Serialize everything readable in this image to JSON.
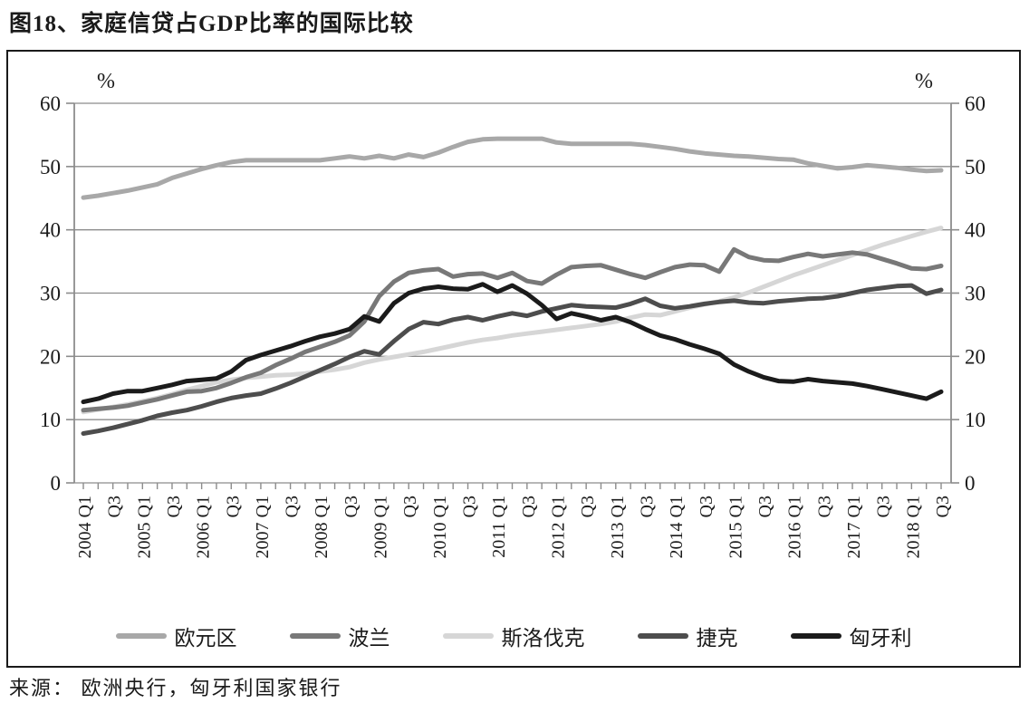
{
  "title": "图18、家庭信贷占GDP比率的国际比较",
  "source": "来源： 欧洲央行，匈牙利国家银行",
  "chart_data": {
    "type": "line",
    "unit_label": "%",
    "ylim": [
      0,
      60
    ],
    "ytick_step": 10,
    "grid": "horizontal",
    "legend_position": "bottom-inside",
    "axis_color": "#8c8c8c",
    "frame_color": "#1a1a1a",
    "x_tick_every_quarter": true,
    "x_labels": [
      "2004 Q1",
      "Q3",
      "2005 Q1",
      "Q3",
      "2006 Q1",
      "Q3",
      "2007 Q1",
      "Q3",
      "2008 Q1",
      "Q3",
      "2009 Q1",
      "Q3",
      "2010 Q1",
      "Q3",
      "2011 Q1",
      "Q3",
      "2012 Q1",
      "Q3",
      "2013 Q1",
      "Q3",
      "2014 Q1",
      "Q3",
      "2015 Q1",
      "Q3",
      "2016 Q1",
      "Q3",
      "2017 Q1",
      "Q3",
      "2018 Q1",
      "Q3"
    ],
    "x_label_quarter_indices": [
      0,
      2,
      4,
      6,
      8,
      10,
      12,
      14,
      16,
      18,
      20,
      22,
      24,
      26,
      28,
      30,
      32,
      34,
      36,
      38,
      40,
      42,
      44,
      46,
      48,
      50,
      52,
      54,
      56,
      58
    ],
    "n_quarters": 59,
    "draw_order": [
      0,
      2,
      1,
      3,
      4
    ],
    "series": [
      {
        "name": "欧元区",
        "color": "#a8a8a8",
        "values": [
          45.1,
          45.4,
          45.8,
          46.2,
          46.7,
          47.2,
          48.2,
          48.9,
          49.6,
          50.2,
          50.7,
          51.0,
          51.0,
          51.0,
          51.0,
          51.0,
          51.0,
          51.3,
          51.6,
          51.3,
          51.7,
          51.3,
          51.9,
          51.5,
          52.2,
          53.1,
          53.9,
          54.3,
          54.4,
          54.4,
          54.4,
          54.4,
          53.8,
          53.6,
          53.6,
          53.6,
          53.6,
          53.6,
          53.4,
          53.1,
          52.8,
          52.4,
          52.1,
          51.9,
          51.7,
          51.6,
          51.4,
          51.2,
          51.1,
          50.5,
          50.1,
          49.7,
          49.9,
          50.2,
          50.0,
          49.8,
          49.5,
          49.3,
          49.4
        ]
      },
      {
        "name": "波兰",
        "color": "#787878",
        "values": [
          11.5,
          11.7,
          11.9,
          12.2,
          12.7,
          13.2,
          13.8,
          14.4,
          14.5,
          15.0,
          15.8,
          16.7,
          17.4,
          18.6,
          19.6,
          20.7,
          21.5,
          22.3,
          23.3,
          25.5,
          29.5,
          31.8,
          33.2,
          33.6,
          33.8,
          32.6,
          33.0,
          33.1,
          32.4,
          33.2,
          31.9,
          31.5,
          32.9,
          34.1,
          34.3,
          34.4,
          33.7,
          33.0,
          32.4,
          33.3,
          34.1,
          34.5,
          34.4,
          33.4,
          36.9,
          35.7,
          35.2,
          35.1,
          35.7,
          36.2,
          35.8,
          36.1,
          36.4,
          36.1,
          35.4,
          34.7,
          33.9,
          33.8,
          34.3
        ]
      },
      {
        "name": "斯洛伐克",
        "color": "#d6d6d6",
        "values": [
          11.2,
          11.6,
          12.0,
          12.4,
          12.9,
          13.4,
          14.0,
          14.7,
          15.3,
          15.9,
          16.3,
          16.6,
          16.8,
          17.0,
          17.1,
          17.3,
          17.6,
          17.9,
          18.3,
          19.0,
          19.5,
          19.9,
          20.3,
          20.7,
          21.2,
          21.7,
          22.2,
          22.6,
          22.9,
          23.3,
          23.6,
          23.9,
          24.2,
          24.5,
          24.8,
          25.1,
          25.5,
          26.1,
          26.6,
          26.5,
          27.1,
          27.7,
          28.2,
          28.7,
          29.3,
          30.1,
          31.0,
          31.9,
          32.8,
          33.6,
          34.4,
          35.2,
          36.0,
          36.8,
          37.6,
          38.3,
          39.0,
          39.7,
          40.3
        ]
      },
      {
        "name": "捷克",
        "color": "#4d4d4d",
        "values": [
          7.8,
          8.2,
          8.7,
          9.3,
          9.9,
          10.6,
          11.1,
          11.5,
          12.1,
          12.8,
          13.4,
          13.8,
          14.1,
          14.9,
          15.8,
          16.8,
          17.8,
          18.8,
          19.9,
          20.8,
          20.3,
          22.4,
          24.3,
          25.4,
          25.1,
          25.8,
          26.2,
          25.7,
          26.3,
          26.8,
          26.4,
          27.1,
          27.6,
          28.1,
          27.9,
          27.8,
          27.7,
          28.3,
          29.1,
          28.0,
          27.6,
          27.9,
          28.3,
          28.6,
          28.8,
          28.5,
          28.4,
          28.7,
          28.9,
          29.1,
          29.2,
          29.5,
          30.0,
          30.5,
          30.8,
          31.1,
          31.2,
          29.9,
          30.5
        ]
      },
      {
        "name": "匈牙利",
        "color": "#1b1b1b",
        "values": [
          12.8,
          13.3,
          14.1,
          14.5,
          14.5,
          15.0,
          15.5,
          16.1,
          16.3,
          16.5,
          17.6,
          19.4,
          20.2,
          20.9,
          21.6,
          22.4,
          23.1,
          23.6,
          24.3,
          26.3,
          25.5,
          28.4,
          30.0,
          30.7,
          31.0,
          30.7,
          30.6,
          31.4,
          30.2,
          31.2,
          29.9,
          28.1,
          25.9,
          26.8,
          26.3,
          25.7,
          26.2,
          25.4,
          24.3,
          23.3,
          22.7,
          21.9,
          21.2,
          20.4,
          18.7,
          17.6,
          16.7,
          16.1,
          16.0,
          16.4,
          16.1,
          15.9,
          15.7,
          15.3,
          14.8,
          14.3,
          13.8,
          13.3,
          14.4
        ]
      }
    ]
  }
}
